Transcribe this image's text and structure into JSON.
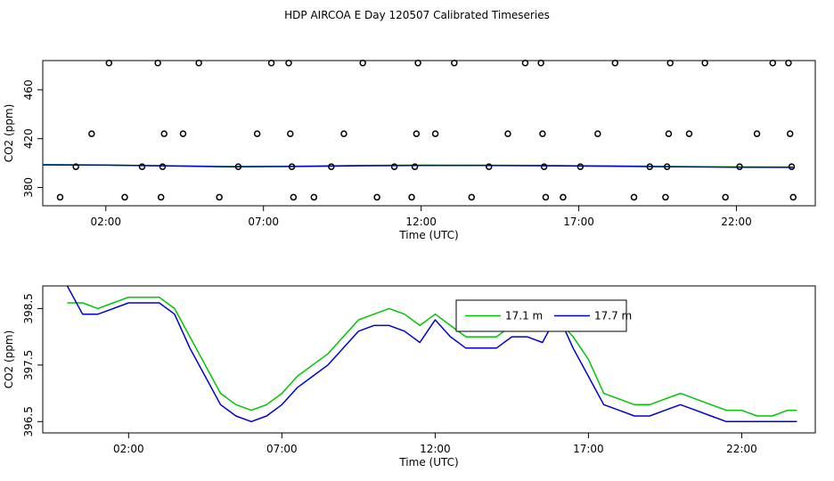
{
  "title": "HDP AIRCOA E  Day 120507  Calibrated Timeseries",
  "colors": {
    "green": "#00c400",
    "blue": "#0000d0",
    "axis": "#000000"
  },
  "chart_data": [
    {
      "type": "scatter",
      "xlabel": "Time (UTC)",
      "ylabel": "CO2 (ppm)",
      "xlim": [
        0,
        24.5
      ],
      "ylim": [
        365,
        484
      ],
      "x_ticks": [
        2,
        7,
        12,
        17,
        22
      ],
      "x_tick_labels": [
        "02:00",
        "07:00",
        "12:00",
        "17:00",
        "22:00"
      ],
      "y_ticks": [
        380,
        420,
        460
      ],
      "y_tick_labels": [
        "380",
        "420",
        "460"
      ],
      "legend": "none",
      "points": {
        "x": [
          0.55,
          1.05,
          1.55,
          2.1,
          2.6,
          3.15,
          3.65,
          3.75,
          3.8,
          3.85,
          4.45,
          4.95,
          5.6,
          6.2,
          6.8,
          7.25,
          7.8,
          7.85,
          7.9,
          7.95,
          8.6,
          9.15,
          9.55,
          10.15,
          10.6,
          11.15,
          11.7,
          11.8,
          11.85,
          11.9,
          12.45,
          13.05,
          13.6,
          14.15,
          14.75,
          15.3,
          15.8,
          15.85,
          15.9,
          15.95,
          16.5,
          17.05,
          17.6,
          18.15,
          18.75,
          19.25,
          19.75,
          19.8,
          19.85,
          19.9,
          20.5,
          21.0,
          21.65,
          22.1,
          22.65,
          23.15,
          23.65,
          23.7,
          23.75,
          23.8
        ],
        "y": [
          372,
          397,
          424,
          482,
          372,
          397,
          482,
          372,
          397,
          424,
          424,
          482,
          372,
          397,
          424,
          482,
          482,
          424,
          397,
          372,
          372,
          397,
          424,
          482,
          372,
          397,
          372,
          397,
          424,
          482,
          424,
          482,
          372,
          397,
          424,
          482,
          482,
          424,
          397,
          372,
          372,
          397,
          424,
          482,
          372,
          397,
          372,
          397,
          424,
          482,
          424,
          482,
          372,
          397,
          424,
          482,
          482,
          424,
          397,
          372
        ]
      },
      "series": [
        {
          "color": "#00c400",
          "x": [
            0,
            2,
            4,
            6,
            8,
            10,
            12,
            14,
            16,
            18,
            20,
            22,
            23.8
          ],
          "values": [
            398.7,
            398.4,
            397.8,
            397.2,
            397.4,
            398.0,
            398.3,
            398.2,
            398.0,
            397.6,
            397.2,
            396.8,
            396.7
          ]
        },
        {
          "color": "#0000d0",
          "x": [
            0,
            2,
            4,
            6,
            8,
            10,
            12,
            14,
            16,
            18,
            20,
            22,
            23.8
          ],
          "values": [
            398.5,
            398.3,
            397.6,
            396.9,
            397.2,
            397.8,
            398.1,
            398.0,
            397.8,
            397.4,
            397.0,
            396.6,
            396.5
          ]
        }
      ]
    },
    {
      "type": "line",
      "xlabel": "Time (UTC)",
      "ylabel": "CO2 (ppm)",
      "xlim": [
        -0.8,
        24.4
      ],
      "ylim": [
        396.3,
        398.9
      ],
      "x_ticks": [
        2,
        7,
        12,
        17,
        22
      ],
      "x_tick_labels": [
        "02:00",
        "07:00",
        "12:00",
        "17:00",
        "22:00"
      ],
      "y_ticks": [
        396.5,
        397.5,
        398.5
      ],
      "y_tick_labels": [
        "396.5",
        "397.5",
        "398.5"
      ],
      "legend": "top-center",
      "series": [
        {
          "name": "17.1 m",
          "color": "#00c400",
          "x": [
            0,
            0.5,
            1,
            1.5,
            2,
            2.5,
            3,
            3.5,
            4,
            4.5,
            5,
            5.5,
            6,
            6.5,
            7,
            7.5,
            8,
            8.5,
            9,
            9.5,
            10,
            10.5,
            11,
            11.5,
            12,
            12.5,
            13,
            13.5,
            14,
            14.5,
            15,
            15.5,
            16,
            16.5,
            17,
            17.5,
            18,
            18.5,
            19,
            19.5,
            20,
            20.5,
            21,
            21.5,
            22,
            22.5,
            23,
            23.5,
            23.8
          ],
          "values": [
            398.6,
            398.6,
            398.5,
            398.6,
            398.7,
            398.7,
            398.7,
            398.5,
            398.0,
            397.5,
            397.0,
            396.8,
            396.7,
            396.8,
            397.0,
            397.3,
            397.5,
            397.7,
            398.0,
            398.3,
            398.4,
            398.5,
            398.4,
            398.2,
            398.4,
            398.2,
            398.0,
            398.0,
            398.0,
            398.2,
            398.3,
            398.2,
            398.3,
            398.0,
            397.6,
            397.0,
            396.9,
            396.8,
            396.8,
            396.9,
            397.0,
            396.9,
            396.8,
            396.7,
            396.7,
            396.6,
            396.6,
            396.7,
            396.7
          ]
        },
        {
          "name": "17.7 m",
          "color": "#0000d0",
          "x": [
            0,
            0.5,
            1,
            1.5,
            2,
            2.5,
            3,
            3.5,
            4,
            4.5,
            5,
            5.5,
            6,
            6.5,
            7,
            7.5,
            8,
            8.5,
            9,
            9.5,
            10,
            10.5,
            11,
            11.5,
            12,
            12.5,
            13,
            13.5,
            14,
            14.5,
            15,
            15.5,
            16,
            16.5,
            17,
            17.5,
            18,
            18.5,
            19,
            19.5,
            20,
            20.5,
            21,
            21.5,
            22,
            22.5,
            23,
            23.5,
            23.8
          ],
          "values": [
            398.9,
            398.4,
            398.4,
            398.5,
            398.6,
            398.6,
            398.6,
            398.4,
            397.8,
            397.3,
            396.8,
            396.6,
            396.5,
            396.6,
            396.8,
            397.1,
            397.3,
            397.5,
            397.8,
            398.1,
            398.2,
            398.2,
            398.1,
            397.9,
            398.3,
            398.0,
            397.8,
            397.8,
            397.8,
            398.0,
            398.0,
            397.9,
            398.4,
            397.8,
            397.3,
            396.8,
            396.7,
            396.6,
            396.6,
            396.7,
            396.8,
            396.7,
            396.6,
            396.5,
            396.5,
            396.5,
            396.5,
            396.5,
            396.5
          ]
        }
      ]
    }
  ]
}
